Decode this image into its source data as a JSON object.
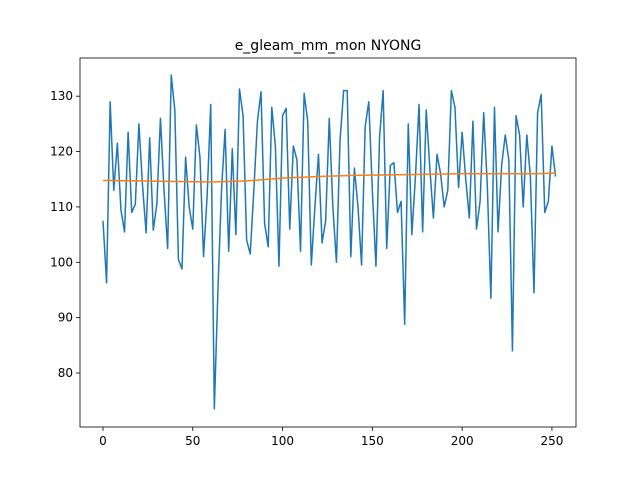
{
  "chart_data": {
    "type": "line",
    "title": "e_gleam_mm_mon NYONG",
    "x": [
      0,
      2,
      4,
      6,
      8,
      10,
      12,
      14,
      16,
      18,
      20,
      22,
      24,
      26,
      28,
      30,
      32,
      34,
      36,
      38,
      40,
      42,
      44,
      46,
      48,
      50,
      52,
      54,
      56,
      58,
      60,
      62,
      64,
      66,
      68,
      70,
      72,
      74,
      76,
      78,
      80,
      82,
      84,
      86,
      88,
      90,
      92,
      94,
      96,
      98,
      100,
      102,
      104,
      106,
      108,
      110,
      112,
      114,
      116,
      118,
      120,
      122,
      124,
      126,
      128,
      130,
      132,
      134,
      136,
      138,
      140,
      142,
      144,
      146,
      148,
      150,
      152,
      154,
      156,
      158,
      160,
      162,
      164,
      166,
      168,
      170,
      172,
      174,
      176,
      178,
      180,
      182,
      184,
      186,
      188,
      190,
      192,
      194,
      196,
      198,
      200,
      202,
      204,
      206,
      208,
      210,
      212,
      214,
      216,
      218,
      220,
      222,
      224,
      226,
      228,
      230,
      232,
      234,
      236,
      238,
      240,
      242,
      244,
      246,
      248,
      250,
      252
    ],
    "series": [
      {
        "color": "#1f77b4",
        "values": [
          107.5,
          96.3,
          129,
          113,
          121.5,
          109.5,
          105.5,
          123.5,
          109,
          110.5,
          125,
          114,
          105.3,
          122.5,
          105.8,
          110.5,
          126,
          113,
          102.5,
          133.8,
          127.5,
          100.5,
          98.8,
          119,
          110,
          106,
          124.8,
          119,
          101,
          112,
          128.5,
          73.5,
          95,
          113,
          124,
          102,
          120.5,
          105,
          131.3,
          126.5,
          104,
          101.5,
          113,
          125.5,
          130.8,
          107,
          102.8,
          128,
          121,
          99.3,
          126.5,
          127.8,
          106,
          121,
          118.5,
          102,
          130.5,
          125.5,
          99.5,
          110,
          119.5,
          103.5,
          107.5,
          126,
          110,
          100,
          122,
          131,
          131,
          101,
          117,
          110,
          99.5,
          124.5,
          129,
          113,
          99.3,
          122.5,
          131,
          102.5,
          117.5,
          118,
          109,
          111,
          88.8,
          125,
          105,
          115.5,
          128.5,
          105.5,
          127.5,
          117,
          108,
          119.5,
          116,
          110,
          113,
          131,
          128,
          113.5,
          123.5,
          115,
          108,
          125.5,
          106,
          111,
          127,
          114,
          93.5,
          128,
          105.5,
          117.5,
          123,
          118.5,
          84,
          126.5,
          123,
          110,
          123,
          115.5,
          94.5,
          127,
          130.3,
          109,
          111,
          121,
          115.5
        ]
      },
      {
        "color": "#ff7f0e",
        "x": [
          0,
          20,
          40,
          60,
          80,
          100,
          120,
          140,
          160,
          180,
          200,
          220,
          240,
          252
        ],
        "values": [
          114.8,
          114.7,
          114.6,
          114.5,
          114.7,
          115.2,
          115.5,
          115.7,
          115.8,
          115.9,
          116,
          116,
          116,
          116.1
        ]
      }
    ],
    "xlim": [
      -12.8,
      263.4
    ],
    "ylim": [
      70.25,
      136.9
    ],
    "xticks": [
      0,
      50,
      100,
      150,
      200,
      250
    ],
    "yticks": [
      80,
      90,
      100,
      110,
      120,
      130
    ]
  }
}
